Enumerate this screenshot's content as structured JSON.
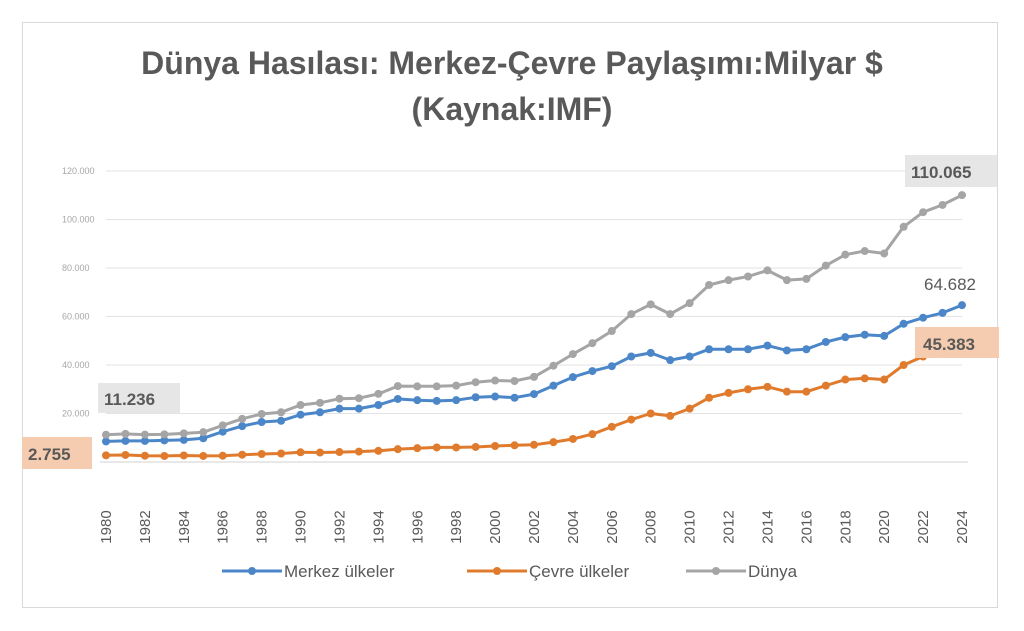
{
  "chart_data": {
    "type": "line",
    "title_line1": "Dünya Hasılası: Merkez-Çevre Paylaşımı:Milyar $",
    "title_line2": "(Kaynak:IMF)",
    "ylim": [
      0,
      120000
    ],
    "y_ticks": [
      "0",
      "20.000",
      "40.000",
      "60.000",
      "80.000",
      "100.000",
      "120.000"
    ],
    "x": [
      1980,
      1981,
      1982,
      1983,
      1984,
      1985,
      1986,
      1987,
      1988,
      1989,
      1990,
      1991,
      1992,
      1993,
      1994,
      1995,
      1996,
      1997,
      1998,
      1999,
      2000,
      2001,
      2002,
      2003,
      2004,
      2005,
      2006,
      2007,
      2008,
      2009,
      2010,
      2011,
      2012,
      2013,
      2014,
      2015,
      2016,
      2017,
      2018,
      2019,
      2020,
      2021,
      2022,
      2023,
      2024
    ],
    "x_tick_labels": [
      "1980",
      "1982",
      "1984",
      "1986",
      "1988",
      "1990",
      "1992",
      "1994",
      "1996",
      "1998",
      "2000",
      "2002",
      "2004",
      "2006",
      "2008",
      "2010",
      "2012",
      "2014",
      "2016",
      "2018",
      "2020",
      "2022",
      "2024"
    ],
    "series": [
      {
        "name": "Merkez ülkeler",
        "color": "#4a86c8",
        "values": [
          8481,
          8700,
          8700,
          8900,
          9100,
          9800,
          12500,
          14800,
          16500,
          17000,
          19500,
          20500,
          22000,
          22000,
          23500,
          26000,
          25500,
          25200,
          25500,
          26700,
          27000,
          26500,
          28000,
          31500,
          35000,
          37500,
          39500,
          43500,
          45000,
          42000,
          43500,
          46500,
          46500,
          46500,
          48000,
          46000,
          46500,
          49500,
          51500,
          52500,
          52000,
          57000,
          59500,
          61500,
          64682
        ]
      },
      {
        "name": "Çevre ülkeler",
        "color": "#e07b2d",
        "values": [
          2755,
          2900,
          2600,
          2500,
          2700,
          2500,
          2600,
          3000,
          3300,
          3500,
          4000,
          3900,
          4100,
          4300,
          4600,
          5300,
          5700,
          6000,
          6000,
          6200,
          6600,
          6900,
          7100,
          8200,
          9500,
          11500,
          14500,
          17500,
          20000,
          19000,
          22000,
          26500,
          28500,
          30000,
          31000,
          29000,
          29000,
          31500,
          34000,
          34500,
          34000,
          40000,
          43500,
          44500,
          45383
        ]
      },
      {
        "name": "Dünya",
        "color": "#a5a5a5",
        "values": [
          11236,
          11600,
          11300,
          11400,
          11800,
          12300,
          15100,
          17800,
          19800,
          20500,
          23500,
          24400,
          26100,
          26300,
          28100,
          31300,
          31200,
          31200,
          31500,
          32900,
          33600,
          33400,
          35100,
          39700,
          44500,
          49000,
          54000,
          61000,
          65000,
          61000,
          65500,
          73000,
          75000,
          76500,
          79000,
          75000,
          75500,
          81000,
          85500,
          87000,
          86000,
          97000,
          103000,
          106000,
          110065
        ]
      }
    ],
    "point_labels": [
      "11.236",
      "2.755",
      "110.065",
      "64.682",
      "45.383"
    ],
    "legend_position": "bottom",
    "grid": true
  }
}
